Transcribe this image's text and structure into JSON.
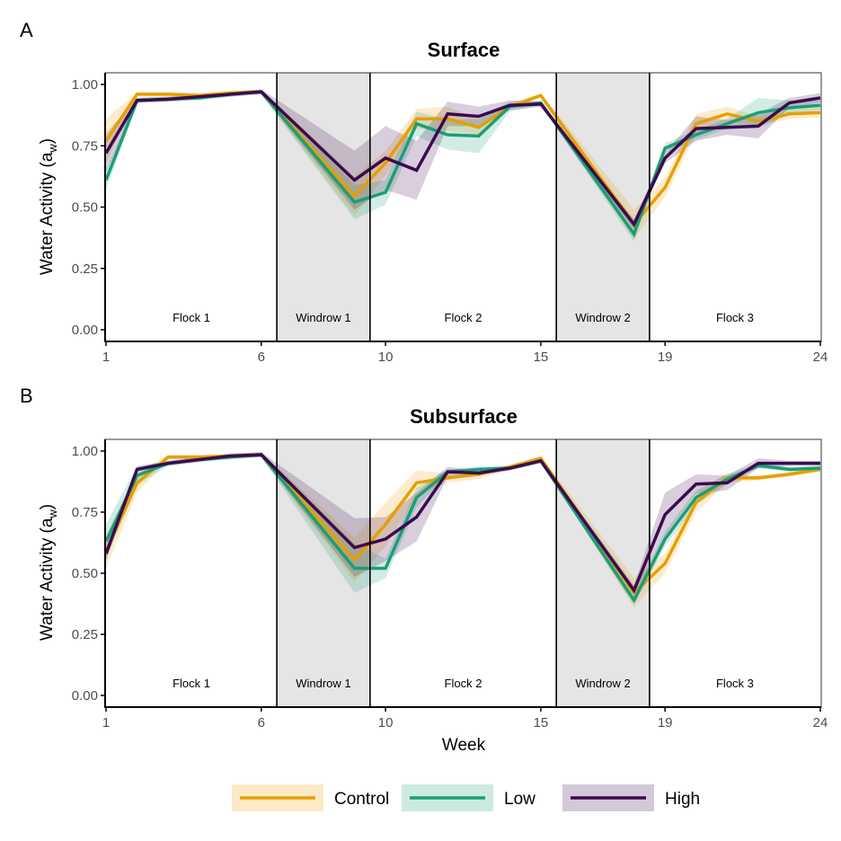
{
  "figure": {
    "legend_title": "",
    "xlabel": "Week",
    "ylabel_main": "Water Activity (a",
    "ylabel_sub": "w",
    "ylabel_close": ")"
  },
  "legend": [
    {
      "name": "Control",
      "color": "#E69F00",
      "fill": "#F9E5BF"
    },
    {
      "name": "Low",
      "color": "#1B9E77",
      "fill": "#C9E9DE"
    },
    {
      "name": "High",
      "color": "#3B0A4F",
      "fill": "#DCC8DF"
    }
  ],
  "chart_data": [
    {
      "type": "line",
      "panel_letter": "A",
      "title": "Surface",
      "xlabel": "",
      "ylabel": "Water Activity (aw)",
      "xlim": [
        1,
        24
      ],
      "ylim": [
        0,
        1
      ],
      "x_ticks": [
        1,
        6,
        10,
        15,
        19,
        24
      ],
      "y_ticks": [
        "0.00",
        "0.25",
        "0.50",
        "0.75",
        "1.00"
      ],
      "regions": [
        {
          "label": "Flock 1",
          "from": 1,
          "to": 6.5,
          "shaded": false
        },
        {
          "label": "Windrow 1",
          "from": 6.5,
          "to": 9.5,
          "shaded": true
        },
        {
          "label": "Flock 2",
          "from": 9.5,
          "to": 15.5,
          "shaded": false
        },
        {
          "label": "Windrow 2",
          "from": 15.5,
          "to": 18.5,
          "shaded": true
        },
        {
          "label": "Flock 3",
          "from": 18.5,
          "to": 24,
          "shaded": false
        }
      ],
      "x": [
        1,
        2,
        3,
        4,
        5,
        6,
        9,
        10,
        11,
        12,
        13,
        14,
        15,
        18,
        19,
        20,
        21,
        22,
        23,
        24
      ],
      "series": [
        {
          "name": "Control",
          "values": [
            0.77,
            0.96,
            0.96,
            0.955,
            0.965,
            0.97,
            0.545,
            0.68,
            0.86,
            0.86,
            0.825,
            0.91,
            0.955,
            0.43,
            0.58,
            0.84,
            0.88,
            0.85,
            0.88,
            0.885
          ],
          "ribbon": [
            0.09,
            0.01,
            0.01,
            0.01,
            0.01,
            0.01,
            0.08,
            0.05,
            0.04,
            0.05,
            0.03,
            0.01,
            0.01,
            0.06,
            0.04,
            0.04,
            0.03,
            0.02,
            0.02,
            0.02
          ]
        },
        {
          "name": "Low",
          "values": [
            0.61,
            0.935,
            0.94,
            0.945,
            0.96,
            0.97,
            0.52,
            0.56,
            0.84,
            0.795,
            0.79,
            0.91,
            0.925,
            0.39,
            0.74,
            0.795,
            0.84,
            0.885,
            0.905,
            0.915
          ],
          "ribbon": [
            0.04,
            0.01,
            0.01,
            0.01,
            0.01,
            0.01,
            0.07,
            0.05,
            0.05,
            0.06,
            0.07,
            0.02,
            0.01,
            0.03,
            0.02,
            0.02,
            0.02,
            0.06,
            0.03,
            0.02
          ]
        },
        {
          "name": "High",
          "values": [
            0.72,
            0.935,
            0.94,
            0.95,
            0.96,
            0.97,
            0.61,
            0.7,
            0.65,
            0.88,
            0.87,
            0.915,
            0.92,
            0.43,
            0.7,
            0.82,
            0.825,
            0.83,
            0.925,
            0.945
          ],
          "ribbon": [
            0.08,
            0.01,
            0.01,
            0.01,
            0.01,
            0.01,
            0.12,
            0.13,
            0.12,
            0.05,
            0.04,
            0.02,
            0.01,
            0.02,
            0.02,
            0.05,
            0.03,
            0.05,
            0.02,
            0.02
          ]
        }
      ]
    },
    {
      "type": "line",
      "panel_letter": "B",
      "title": "Subsurface",
      "xlabel": "Week",
      "ylabel": "Water Activity (aw)",
      "xlim": [
        1,
        24
      ],
      "ylim": [
        0,
        1
      ],
      "x_ticks": [
        1,
        6,
        10,
        15,
        19,
        24
      ],
      "y_ticks": [
        "0.00",
        "0.25",
        "0.50",
        "0.75",
        "1.00"
      ],
      "regions": [
        {
          "label": "Flock 1",
          "from": 1,
          "to": 6.5,
          "shaded": false
        },
        {
          "label": "Windrow 1",
          "from": 6.5,
          "to": 9.5,
          "shaded": true
        },
        {
          "label": "Flock 2",
          "from": 9.5,
          "to": 15.5,
          "shaded": false
        },
        {
          "label": "Windrow 2",
          "from": 15.5,
          "to": 18.5,
          "shaded": true
        },
        {
          "label": "Flock 3",
          "from": 18.5,
          "to": 24,
          "shaded": false
        }
      ],
      "x": [
        1,
        2,
        3,
        4,
        5,
        6,
        9,
        10,
        11,
        12,
        13,
        14,
        15,
        18,
        19,
        20,
        21,
        22,
        23,
        24
      ],
      "series": [
        {
          "name": "Control",
          "values": [
            0.59,
            0.87,
            0.975,
            0.975,
            0.98,
            0.985,
            0.555,
            0.7,
            0.87,
            0.89,
            0.905,
            0.935,
            0.97,
            0.42,
            0.54,
            0.79,
            0.89,
            0.89,
            0.905,
            0.925
          ],
          "ribbon": [
            0.07,
            0.04,
            0.01,
            0.01,
            0.01,
            0.01,
            0.09,
            0.09,
            0.05,
            0.02,
            0.02,
            0.01,
            0.01,
            0.06,
            0.04,
            0.04,
            0.02,
            0.01,
            0.01,
            0.01
          ]
        },
        {
          "name": "Low",
          "values": [
            0.63,
            0.9,
            0.95,
            0.965,
            0.975,
            0.985,
            0.52,
            0.52,
            0.81,
            0.915,
            0.925,
            0.93,
            0.96,
            0.39,
            0.64,
            0.81,
            0.885,
            0.94,
            0.925,
            0.93
          ],
          "ribbon": [
            0.07,
            0.04,
            0.01,
            0.01,
            0.01,
            0.01,
            0.1,
            0.04,
            0.04,
            0.01,
            0.01,
            0.01,
            0.01,
            0.02,
            0.03,
            0.03,
            0.02,
            0.01,
            0.01,
            0.01
          ]
        },
        {
          "name": "High",
          "values": [
            0.58,
            0.925,
            0.95,
            0.965,
            0.98,
            0.985,
            0.605,
            0.64,
            0.73,
            0.915,
            0.91,
            0.93,
            0.96,
            0.43,
            0.74,
            0.865,
            0.87,
            0.95,
            0.95,
            0.95
          ],
          "ribbon": [
            0.03,
            0.01,
            0.01,
            0.01,
            0.01,
            0.01,
            0.12,
            0.09,
            0.1,
            0.02,
            0.01,
            0.01,
            0.01,
            0.02,
            0.09,
            0.04,
            0.03,
            0.02,
            0.01,
            0.01
          ]
        }
      ]
    }
  ]
}
